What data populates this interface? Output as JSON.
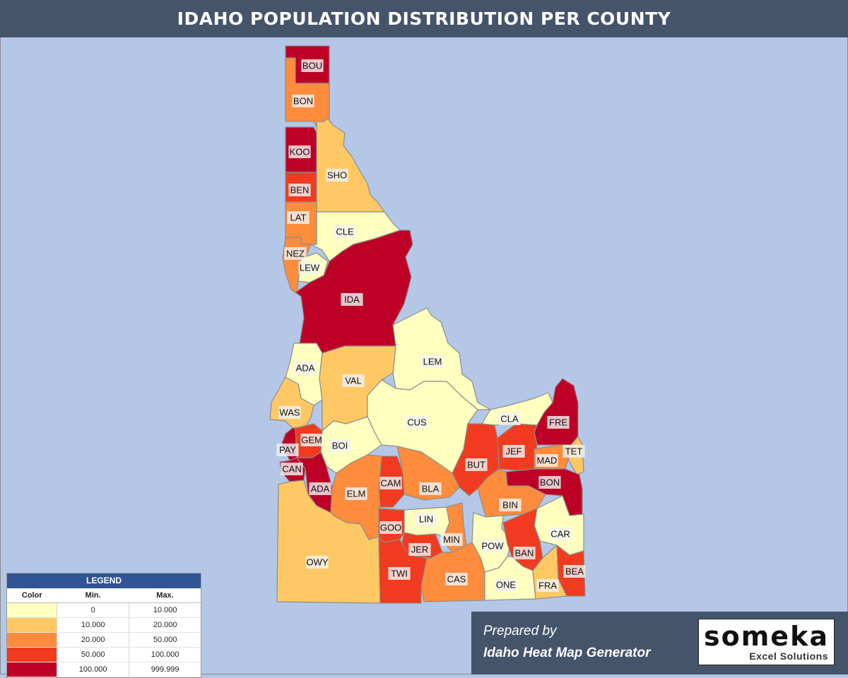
{
  "title": "IDAHO POPULATION DISTRIBUTION PER COUNTY",
  "colors": {
    "c0": "#ffffbf",
    "c1": "#fec965",
    "c2": "#fd8c3c",
    "c3": "#f03b20",
    "c4": "#bd0026"
  },
  "legend": {
    "title": "LEGEND",
    "headers": [
      "Color",
      "Min.",
      "Max."
    ],
    "rows": [
      {
        "class": "c0",
        "min": "0",
        "max": "10.000"
      },
      {
        "class": "c1",
        "min": "10.000",
        "max": "20.000"
      },
      {
        "class": "c2",
        "min": "20.000",
        "max": "50.000"
      },
      {
        "class": "c3",
        "min": "50.000",
        "max": "100.000"
      },
      {
        "class": "c4",
        "min": "100.000",
        "max": "999.999"
      }
    ]
  },
  "counties": [
    {
      "abbr": "BOU",
      "class": "c4"
    },
    {
      "abbr": "BON",
      "class": "c2"
    },
    {
      "abbr": "KOO",
      "class": "c4"
    },
    {
      "abbr": "SHO",
      "class": "c1"
    },
    {
      "abbr": "BEN",
      "class": "c3"
    },
    {
      "abbr": "LAT",
      "class": "c2"
    },
    {
      "abbr": "CLE",
      "class": "c0"
    },
    {
      "abbr": "NEZ",
      "class": "c2"
    },
    {
      "abbr": "LEW",
      "class": "c0"
    },
    {
      "abbr": "IDA",
      "class": "c4"
    },
    {
      "abbr": "LEM",
      "class": "c0"
    },
    {
      "abbr": "ADA",
      "class": "c0"
    },
    {
      "abbr": "VAL",
      "class": "c1"
    },
    {
      "abbr": "WAS",
      "class": "c1"
    },
    {
      "abbr": "CUS",
      "class": "c0"
    },
    {
      "abbr": "CLA",
      "class": "c0"
    },
    {
      "abbr": "FRE",
      "class": "c4"
    },
    {
      "abbr": "GEM",
      "class": "c3"
    },
    {
      "abbr": "BOI",
      "class": "c0"
    },
    {
      "abbr": "PAY",
      "class": "c4"
    },
    {
      "abbr": "JEF",
      "class": "c3"
    },
    {
      "abbr": "TET",
      "class": "c1"
    },
    {
      "abbr": "BUT",
      "class": "c3"
    },
    {
      "abbr": "MAD",
      "class": "c2"
    },
    {
      "abbr": "CAN",
      "class": "c4"
    },
    {
      "abbr": "ADA",
      "class": "c4"
    },
    {
      "abbr": "CAM",
      "class": "c3"
    },
    {
      "abbr": "BLA",
      "class": "c2"
    },
    {
      "abbr": "BON",
      "class": "c4"
    },
    {
      "abbr": "ELM",
      "class": "c2"
    },
    {
      "abbr": "BIN",
      "class": "c2"
    },
    {
      "abbr": "LIN",
      "class": "c0"
    },
    {
      "abbr": "GOO",
      "class": "c3"
    },
    {
      "abbr": "CAR",
      "class": "c0"
    },
    {
      "abbr": "MIN",
      "class": "c2"
    },
    {
      "abbr": "POW",
      "class": "c0"
    },
    {
      "abbr": "JER",
      "class": "c3"
    },
    {
      "abbr": "BAN",
      "class": "c3"
    },
    {
      "abbr": "OWY",
      "class": "c1"
    },
    {
      "abbr": "BEA",
      "class": "c3"
    },
    {
      "abbr": "TWI",
      "class": "c3"
    },
    {
      "abbr": "CAS",
      "class": "c2"
    },
    {
      "abbr": "ONE",
      "class": "c0"
    },
    {
      "abbr": "FRA",
      "class": "c1"
    }
  ],
  "promo": {
    "prepared_by": "Prepared by",
    "generator": "Idaho Heat Map Generator",
    "logo_brand": "someka",
    "logo_tag": "Excel Solutions"
  }
}
